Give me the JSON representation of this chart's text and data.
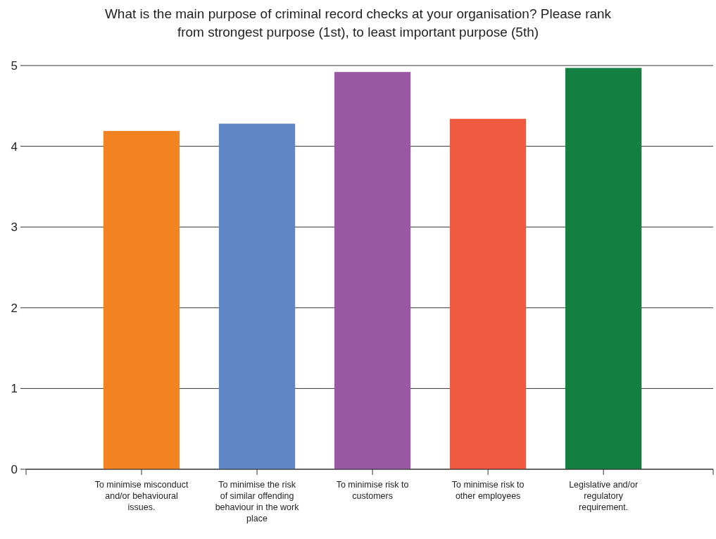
{
  "chart_data": {
    "type": "bar",
    "title": "What is the main purpose of criminal record checks at your organisation? Please rank from strongest purpose (1st), to least important purpose (5th)",
    "categories": [
      "To minimise misconduct and/or behavioural issues.",
      "To minimise the risk of similar offending behaviour in the work place",
      "To minimise risk to customers",
      "To minimise risk to other employees",
      "Legislative and/or regulatory requirement."
    ],
    "values": [
      4.19,
      4.28,
      4.92,
      4.34,
      4.97
    ],
    "colors": [
      "#f28322",
      "#5f87c5",
      "#9a57a3",
      "#f05a40",
      "#137f41"
    ],
    "ylim": [
      0,
      5
    ],
    "yticks": [
      0,
      1,
      2,
      3,
      4,
      5
    ],
    "grid": "y"
  }
}
